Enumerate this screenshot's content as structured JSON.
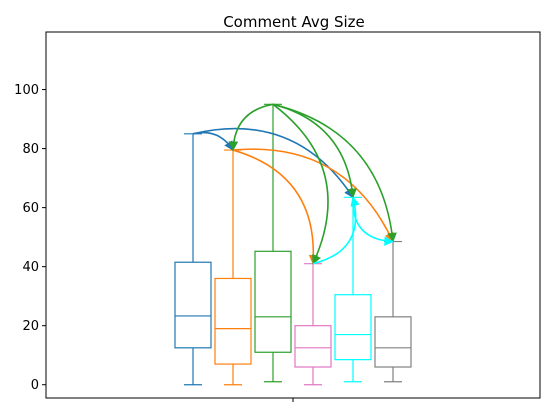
{
  "chart_data": {
    "type": "box",
    "title": "Comment Avg Size",
    "xlabel": "",
    "ylabel": "",
    "ylim": [
      -4.5,
      119.5
    ],
    "yticks": [
      0,
      20,
      40,
      60,
      80,
      100
    ],
    "ytick_labels": [
      "0",
      "20",
      "40",
      "60",
      "80",
      "100"
    ],
    "grid": false,
    "legend": "none",
    "boxes": [
      {
        "color": "#1f77b4",
        "min": 0,
        "q1": 12.5,
        "median": 23.3,
        "q3": 41.5,
        "max": 85
      },
      {
        "color": "#ff7f0e",
        "min": 0,
        "q1": 7,
        "median": 19,
        "q3": 36,
        "max": 79.5
      },
      {
        "color": "#2ca02c",
        "min": 1,
        "q1": 11,
        "median": 23,
        "q3": 45.2,
        "max": 95
      },
      {
        "color": "#e377c2",
        "min": 0,
        "q1": 6,
        "median": 12.5,
        "q3": 20,
        "max": 41
      },
      {
        "color": "#00ffff",
        "min": 1,
        "q1": 8.5,
        "median": 17,
        "q3": 30.5,
        "max": 63.5
      },
      {
        "color": "#808080",
        "min": 1,
        "q1": 6,
        "median": 12.5,
        "q3": 23,
        "max": 48.5
      }
    ],
    "arrows": [
      {
        "from": 0,
        "to": 1,
        "color": "#1f77b4",
        "rad": 0.35
      },
      {
        "from": 0,
        "to": 4,
        "color": "#1f77b4",
        "rad": 0.35
      },
      {
        "from": 1,
        "to": 3,
        "color": "#ff7f0e",
        "rad": 0.4
      },
      {
        "from": 1,
        "to": 5,
        "color": "#ff7f0e",
        "rad": 0.35
      },
      {
        "from": 2,
        "to": 1,
        "color": "#2ca02c",
        "rad": -0.4
      },
      {
        "from": 2,
        "to": 3,
        "color": "#2ca02c",
        "rad": 0.4
      },
      {
        "from": 2,
        "to": 4,
        "color": "#2ca02c",
        "rad": 0.35
      },
      {
        "from": 2,
        "to": 5,
        "color": "#2ca02c",
        "rad": 0.35
      },
      {
        "from": 3,
        "to": 4,
        "color": "#00ffff",
        "rad": -0.5
      },
      {
        "from": 4,
        "to": 5,
        "color": "#00ffff",
        "rad": -0.5
      }
    ]
  }
}
